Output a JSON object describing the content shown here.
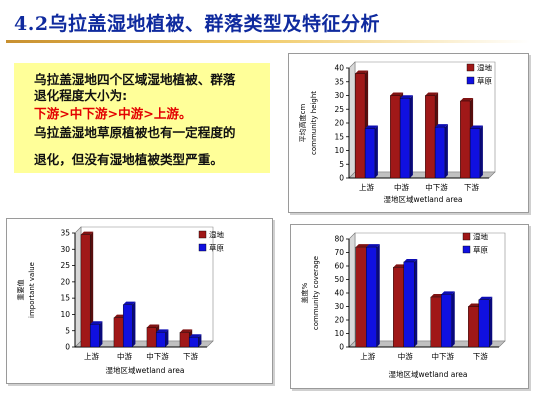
{
  "slide": {
    "title": "4.2乌拉盖湿地植被、群落类型及特征分析"
  },
  "summary": {
    "line1": "乌拉盖湿地四个区域湿地植被、群落",
    "line2": "退化程度大小为:",
    "line3": "下游>中下游>中游>上游。",
    "line4": "乌拉盖湿地草原植被也有一定程度的",
    "line5": "退化，但没有湿地植被类型严重。"
  },
  "colors": {
    "wetland": "#a01818",
    "steppe": "#1010e0",
    "title": "#0f2a9e",
    "highlight": "#e30000",
    "box": "#ffff99"
  },
  "chart_data": [
    {
      "type": "bar",
      "title": "",
      "ylabel": "平均高度cm community height",
      "ylabel_lines": [
        "平均高度cm",
        "community height"
      ],
      "xlabel": "湿地区域wetland area",
      "categories": [
        "上游",
        "中游",
        "中下游",
        "下游"
      ],
      "ylim": [
        0,
        40
      ],
      "ticks": [
        0,
        5,
        10,
        15,
        20,
        25,
        30,
        35,
        40
      ],
      "legend_position": "top-right",
      "series": [
        {
          "name": "湿地",
          "values": [
            38,
            30,
            30,
            28
          ]
        },
        {
          "name": "草原",
          "values": [
            18,
            29,
            18.5,
            18
          ]
        }
      ]
    },
    {
      "type": "bar",
      "title": "",
      "ylabel": "重要值 important value",
      "ylabel_lines": [
        "重要值",
        "important value"
      ],
      "xlabel": "湿地区域wetland area",
      "categories": [
        "上游",
        "中游",
        "中下游",
        "下游"
      ],
      "ylim": [
        0,
        35
      ],
      "ticks": [
        0,
        5,
        10,
        15,
        20,
        25,
        30,
        35
      ],
      "legend_position": "top-right",
      "series": [
        {
          "name": "湿地",
          "values": [
            34.5,
            9,
            6,
            4.5
          ]
        },
        {
          "name": "草原",
          "values": [
            7,
            13,
            4.5,
            3
          ]
        }
      ]
    },
    {
      "type": "bar",
      "title": "",
      "ylabel": "盖度% community coverage",
      "ylabel_lines": [
        "盖度%",
        "community coverage"
      ],
      "xlabel": "湿地区域wetland area",
      "categories": [
        "上游",
        "中游",
        "中下游",
        "下游"
      ],
      "ylim": [
        0,
        80
      ],
      "ticks": [
        0,
        10,
        20,
        30,
        40,
        50,
        60,
        70,
        80
      ],
      "legend_position": "top-right",
      "series": [
        {
          "name": "湿地",
          "values": [
            74,
            59,
            37,
            30
          ]
        },
        {
          "name": "草原",
          "values": [
            74,
            63,
            39,
            35
          ]
        }
      ]
    }
  ]
}
